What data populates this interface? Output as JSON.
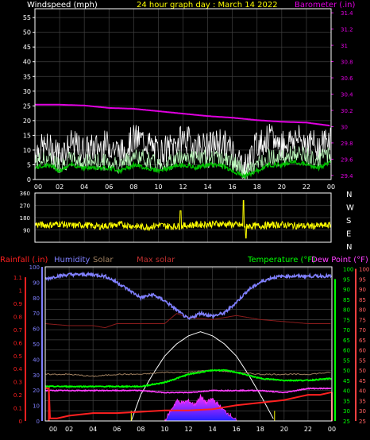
{
  "chart_data": [
    {
      "type": "line",
      "title": "24 hour graph day : March 14 2022",
      "left_axis_label": "Windspeed (mph)",
      "right_axis_label": "Barometer (.in)",
      "x_tick_labels": [
        "00",
        "02",
        "04",
        "06",
        "08",
        "10",
        "12",
        "14",
        "16",
        "18",
        "20",
        "22",
        "00"
      ],
      "left_ticks": [
        "0",
        "5",
        "10",
        "15",
        "20",
        "25",
        "30",
        "35",
        "40",
        "45",
        "50",
        "55"
      ],
      "left_ylim": [
        0,
        58
      ],
      "right_ticks": [
        "29.4",
        "29.6",
        "29.8",
        "30",
        "30.2",
        "30.4",
        "30.6",
        "30.8",
        "31",
        "31.2",
        "31.4"
      ],
      "right_ylim": [
        29.35,
        31.45
      ],
      "grid": true,
      "colors": {
        "barometer": "#e000e0",
        "gust": "#ffffff",
        "wind": "#c0ffc0",
        "wind_avg": "#00c000",
        "frame": "#ffffff",
        "grid": "#404040"
      },
      "series": [
        {
          "name": "Barometer",
          "axis": "right",
          "x": [
            0,
            2,
            4,
            6,
            8,
            10,
            12,
            14,
            16,
            18,
            20,
            22,
            24
          ],
          "values": [
            30.27,
            30.27,
            30.26,
            30.23,
            30.22,
            30.19,
            30.16,
            30.13,
            30.11,
            30.08,
            30.06,
            30.05,
            30.01
          ]
        },
        {
          "axis": "left",
          "x": [
            0,
            1,
            2,
            3,
            4,
            5,
            6,
            7,
            8,
            9,
            10,
            11,
            12,
            13,
            14,
            15,
            16,
            17,
            18,
            19,
            20,
            21,
            22,
            23,
            24
          ],
          "values": [
            10,
            11,
            9,
            12,
            10,
            11,
            12,
            9,
            14,
            13,
            9,
            11,
            14,
            12,
            11,
            13,
            10,
            4,
            12,
            14,
            12,
            14,
            13,
            11,
            15
          ]
        },
        {
          "axis": "left",
          "x": [
            0,
            1,
            2,
            3,
            4,
            5,
            6,
            7,
            8,
            9,
            10,
            11,
            12,
            13,
            14,
            15,
            16,
            17,
            18,
            19,
            20,
            21,
            22,
            23,
            24
          ],
          "values": [
            6,
            7,
            5,
            7,
            6,
            6,
            6,
            5,
            8,
            7,
            5,
            6,
            8,
            7,
            7,
            7,
            6,
            2,
            5,
            8,
            7,
            9,
            8,
            7,
            9
          ]
        },
        {
          "axis": "left",
          "x": [
            0,
            1,
            2,
            3,
            4,
            5,
            6,
            7,
            8,
            9,
            10,
            11,
            12,
            13,
            14,
            15,
            16,
            17,
            18,
            19,
            20,
            21,
            22,
            23,
            24
          ],
          "values": [
            4,
            5,
            3,
            5,
            4,
            4,
            4,
            3,
            5,
            4,
            3,
            4,
            5,
            4,
            5,
            5,
            3,
            1,
            3,
            5,
            5,
            6,
            5,
            4,
            6
          ]
        }
      ]
    },
    {
      "type": "line",
      "right_direction_labels": [
        "N",
        "W",
        "S",
        "E",
        "N"
      ],
      "left_ticks": [
        "90",
        "180",
        "270",
        "360"
      ],
      "ylim": [
        0,
        360
      ],
      "colors": {
        "direction": "#ffff00"
      },
      "series": [
        {
          "axis": "left",
          "x": [
            0,
            1,
            2,
            3,
            4,
            5,
            6,
            7,
            8,
            9,
            10,
            11,
            12,
            13,
            14,
            15,
            16,
            17,
            18,
            19,
            20,
            21,
            22,
            23,
            24
          ],
          "values": [
            130,
            125,
            135,
            120,
            128,
            115,
            122,
            130,
            118,
            110,
            125,
            115,
            120,
            128,
            132,
            135,
            130,
            120,
            118,
            125,
            128,
            122,
            118,
            120,
            125
          ]
        }
      ]
    },
    {
      "type": "line",
      "legend": [
        "Rainfall (.in)",
        "Humidity",
        "Solar",
        "Max solar",
        "Temperature (°F)",
        "Dew Point (°F)"
      ],
      "legend_colors": [
        "#ff2020",
        "#8080ff",
        "#a08060",
        "#c03030",
        "#00ff00",
        "#ff40ff"
      ],
      "x_tick_labels": [
        "00",
        "02",
        "04",
        "06",
        "08",
        "10",
        "12",
        "14",
        "16",
        "18",
        "20",
        "22",
        "00"
      ],
      "rain_ticks": [
        "0",
        "0.1",
        "0.2",
        "0.3",
        "0.4",
        "0.5",
        "0.6",
        "0.7",
        "0.8",
        "0.9",
        "1",
        "1.1"
      ],
      "rain_ylim": [
        0,
        1.18
      ],
      "humidity_ticks": [
        "0",
        "10",
        "20",
        "30",
        "40",
        "50",
        "60",
        "70",
        "80",
        "90",
        "100"
      ],
      "humidity_ylim": [
        0,
        100
      ],
      "temp_ticks": [
        "25",
        "30",
        "35",
        "40",
        "45",
        "50",
        "55",
        "60",
        "65",
        "70",
        "75",
        "80",
        "85",
        "90",
        "95",
        "100"
      ],
      "temp_ylim": [
        25,
        101
      ],
      "dew_ticks": [
        "25",
        "30",
        "35",
        "40",
        "45",
        "50",
        "55",
        "60",
        "65",
        "70",
        "75",
        "80",
        "85",
        "90",
        "95",
        "100"
      ],
      "series": [
        {
          "name": "Humidity",
          "axis": "humidity",
          "x": [
            0,
            1,
            2,
            3,
            4,
            5,
            6,
            7,
            8,
            9,
            10,
            11,
            12,
            13,
            14,
            15,
            16,
            17,
            18,
            19,
            20,
            21,
            22,
            23,
            24
          ],
          "values": [
            92,
            94,
            95,
            95,
            95,
            94,
            90,
            85,
            80,
            82,
            78,
            72,
            66,
            70,
            68,
            70,
            77,
            85,
            90,
            93,
            94,
            94,
            94,
            94,
            94
          ]
        },
        {
          "name": "Temperature (°F)",
          "axis": "temp",
          "x": [
            0,
            2,
            4,
            6,
            8,
            10,
            12,
            14,
            15,
            16,
            18,
            20,
            22,
            24
          ],
          "values": [
            42,
            42,
            42,
            42,
            42,
            44,
            48,
            50,
            50,
            49,
            46,
            45,
            45,
            46
          ]
        },
        {
          "name": "Dew Point (°F)",
          "axis": "temp",
          "x": [
            0,
            2,
            4,
            6,
            8,
            10,
            12,
            14,
            16,
            18,
            20,
            22,
            24
          ],
          "values": [
            40,
            40,
            40,
            40,
            40,
            39,
            39,
            40,
            40,
            40,
            39,
            41,
            41
          ]
        },
        {
          "name": "Max solar",
          "axis": "temp",
          "x": [
            0,
            2,
            4,
            5,
            6,
            8,
            10,
            11,
            12,
            14,
            16,
            18,
            20,
            22,
            24
          ],
          "values": [
            73,
            72,
            72,
            71,
            73,
            73,
            73,
            78,
            76,
            75,
            77,
            75,
            74,
            73,
            73
          ]
        },
        {
          "name": "Solar",
          "axis": "temp",
          "x": [
            0,
            2,
            4,
            6,
            8,
            10,
            12,
            14,
            16,
            18,
            20,
            22,
            24
          ],
          "values": [
            48,
            48,
            47,
            48,
            48,
            49,
            49,
            50,
            49,
            48,
            48,
            48,
            49
          ]
        },
        {
          "name": "Rainfall (.in)",
          "axis": "rain",
          "x": [
            0,
            0.3,
            0.4,
            1,
            2,
            4,
            6,
            8,
            10,
            12,
            14,
            16,
            18,
            20,
            22,
            23,
            24
          ],
          "values": [
            0.25,
            0.25,
            0.02,
            0.02,
            0.04,
            0.06,
            0.06,
            0.07,
            0.08,
            0.08,
            0.09,
            0.12,
            0.14,
            0.16,
            0.2,
            0.2,
            0.22
          ]
        },
        {
          "axis": "temp",
          "x": [
            7.2,
            8,
            9,
            10,
            11,
            12,
            13,
            14,
            15,
            16,
            17,
            18,
            19.2
          ],
          "values": [
            25,
            38,
            48,
            57,
            63,
            67,
            69,
            67,
            63,
            57,
            48,
            38,
            25
          ]
        },
        {
          "axis": "temp",
          "x": [
            10,
            10.5,
            11,
            11.5,
            12,
            12.5,
            13,
            13.5,
            14,
            14.5,
            15,
            15.5,
            16
          ],
          "values": [
            25,
            30,
            35,
            34,
            35,
            33,
            37,
            34,
            36,
            33,
            30,
            28,
            25
          ]
        }
      ]
    }
  ]
}
